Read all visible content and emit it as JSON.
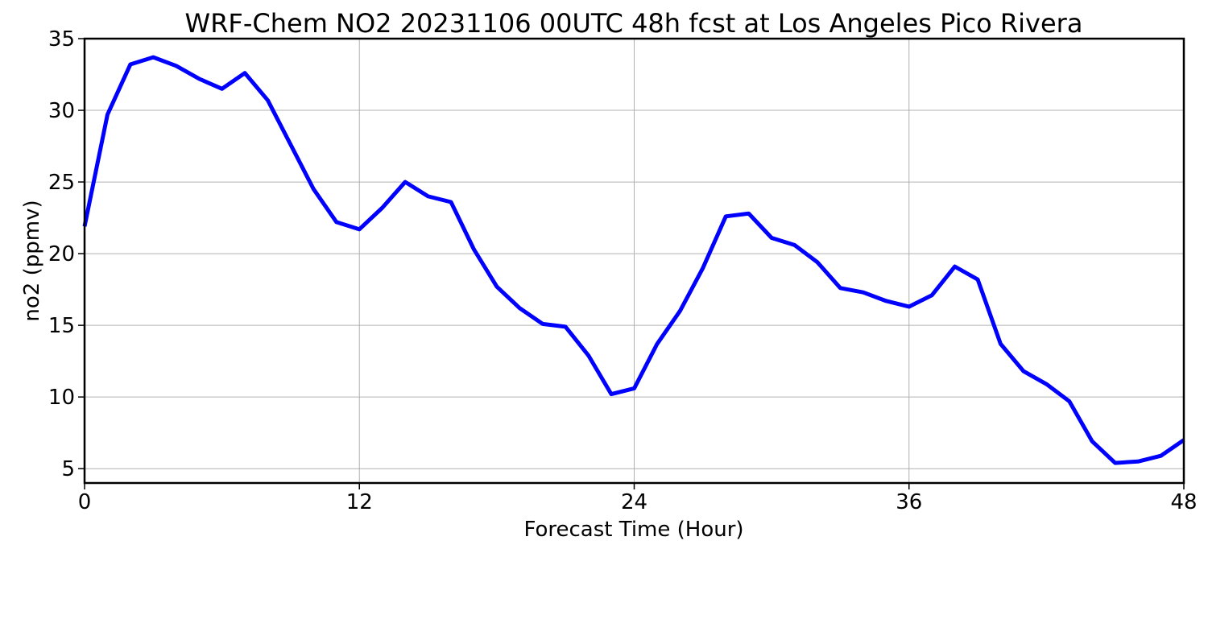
{
  "chart_data": {
    "type": "line",
    "title": "WRF-Chem NO2  20231106 00UTC 48h fcst at Los Angeles Pico Rivera",
    "xlabel": "Forecast Time (Hour)",
    "ylabel": "no2  (ppmv)",
    "xlim": [
      0,
      48
    ],
    "ylim": [
      4,
      35
    ],
    "xticks": [
      0,
      12,
      24,
      36,
      48
    ],
    "yticks": [
      5,
      10,
      15,
      20,
      25,
      30,
      35
    ],
    "grid": true,
    "line_color": "#0000ff",
    "x": [
      0,
      1,
      2,
      3,
      4,
      5,
      6,
      7,
      8,
      9,
      10,
      11,
      12,
      13,
      14,
      15,
      16,
      17,
      18,
      19,
      20,
      21,
      22,
      23,
      24,
      25,
      26,
      27,
      28,
      29,
      30,
      31,
      32,
      33,
      34,
      35,
      36,
      37,
      38,
      39,
      40,
      41,
      42,
      43,
      44,
      45,
      46,
      47,
      48
    ],
    "y": [
      21.9,
      29.7,
      33.2,
      33.7,
      33.1,
      32.2,
      31.5,
      32.6,
      30.7,
      27.6,
      24.5,
      22.2,
      21.7,
      23.2,
      25.0,
      24.0,
      23.6,
      20.3,
      17.7,
      16.2,
      15.1,
      14.9,
      12.9,
      10.2,
      10.6,
      13.7,
      16.0,
      19.0,
      22.6,
      22.8,
      21.1,
      20.6,
      19.4,
      17.6,
      17.3,
      16.7,
      16.3,
      17.1,
      19.1,
      18.2,
      13.7,
      11.8,
      10.9,
      9.7,
      6.9,
      5.4,
      5.5,
      5.9,
      7.0
    ]
  }
}
